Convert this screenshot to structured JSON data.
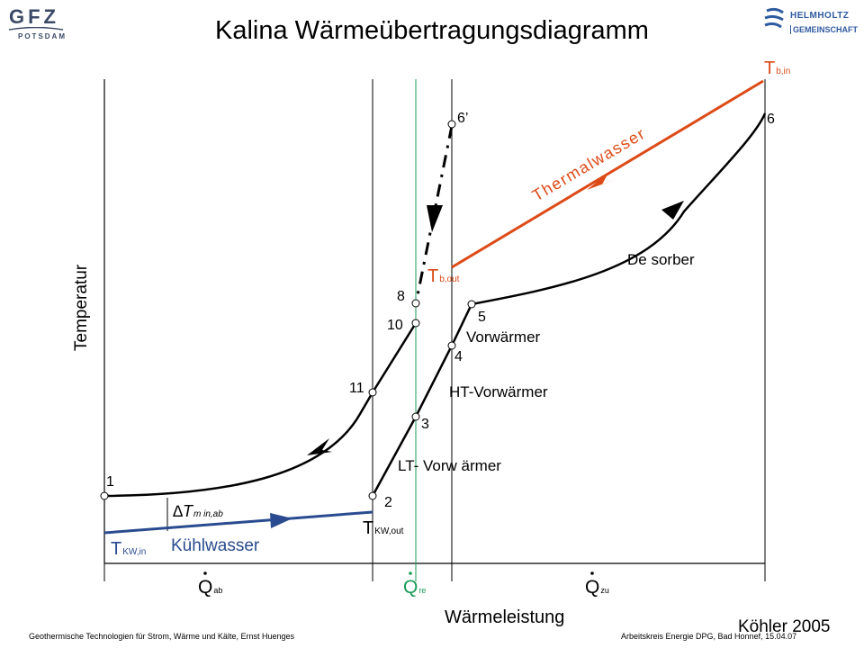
{
  "header": {
    "title": "Kalina Wärmeübertragungsdiagramm",
    "logo_left": {
      "text": "GFZ",
      "subtext": "POTSDAM"
    },
    "logo_right": {
      "line1": "HELMHOLTZ",
      "line2": "GEMEINSCHAFT"
    }
  },
  "diagram": {
    "y_axis_label": "Temperatur",
    "x_axis_label": "Wärmeleistung",
    "point_labels": [
      "1",
      "2",
      "3",
      "4",
      "5",
      "6",
      "6’",
      "8",
      "10",
      "11"
    ],
    "streams": {
      "thermalwasser": "Thermalwasser",
      "kuehlwasser": "Kühlwasser",
      "desorber": "De sorber",
      "vorwaermer": "Vorwärmer",
      "ht_vorwaermer": "HT-Vorwärmer",
      "lt_vorwaermer": "LT-  Vorw ärmer"
    },
    "temperature_labels": {
      "t_b_in": {
        "main": "T",
        "sub": "b,in"
      },
      "t_b_out": {
        "main": "T",
        "sub": "b,out"
      },
      "t_kw_out": {
        "main": "T",
        "sub": "KW,out"
      },
      "t_kw_in": {
        "main": "T",
        "sub": "KW,in"
      }
    },
    "delta_t": {
      "symbol": "∆T",
      "sub": "m in,ab"
    },
    "heat_labels": {
      "q_ab": {
        "main": "Q",
        "sub": "ab"
      },
      "q_re": {
        "main": "Q",
        "sub": "re"
      },
      "q_zu": {
        "main": "Q",
        "sub": "zu"
      }
    },
    "colors": {
      "thermal": "#dd4a17",
      "cooling": "#2a4b8f",
      "recuperation": "#199a55",
      "process": "#000000"
    }
  },
  "footer": {
    "left": "Geothermische Technologien für Strom, Wärme und Kälte,   Ernst Huenges",
    "right": "Arbeitskreis Energie DPG, Bad Honnef, 15.04.07",
    "author": "Köhler 2005"
  }
}
